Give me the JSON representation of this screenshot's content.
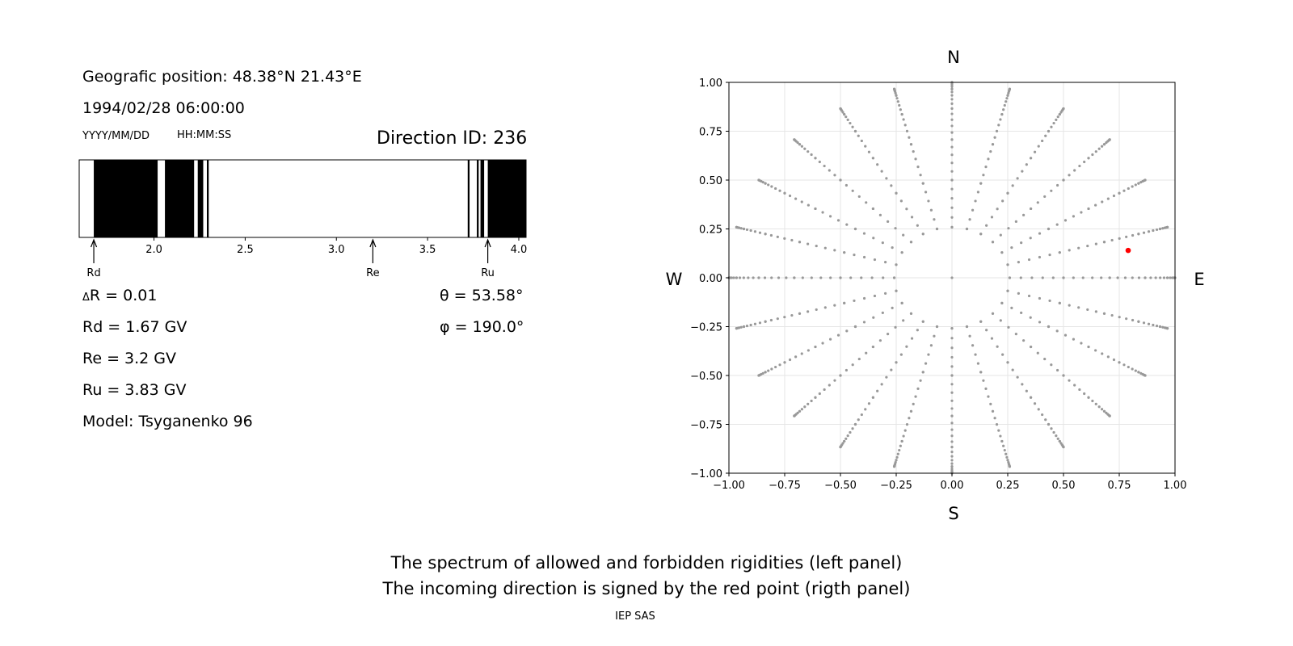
{
  "left_panel": {
    "position": "Geografic position: 48.38°N 21.43°E",
    "datetime": "1994/02/28 06:00:00",
    "date_format": "YYYY/MM/DD",
    "time_format": "HH:MM:SS",
    "direction_id": "Direction ID: 236",
    "delta_r": "R = 0.01",
    "rd": "Rd = 1.67 GV",
    "re": "Re = 3.2 GV",
    "ru": "Ru = 3.83 GV",
    "model": "Model: Tsyganenko 96",
    "theta": "θ = 53.58°",
    "phi": "φ = 190.0°"
  },
  "captions": {
    "line1": "The spectrum of allowed and forbidden rigidities (left panel)",
    "line2": "The incoming direction is signed by the red point (rigth panel)",
    "credit": "IEP SAS"
  },
  "chart_data": [
    {
      "type": "bar",
      "description_ref": "rigidity spectrum",
      "xlim": [
        1.59,
        4.04
      ],
      "xticks": [
        "2.0",
        "2.5",
        "3.0",
        "3.5",
        "4.0"
      ],
      "xtick_values": [
        2.0,
        2.5,
        3.0,
        3.5,
        4.0
      ],
      "forbidden_bands": [
        [
          1.67,
          2.02
        ],
        [
          2.06,
          2.22
        ],
        [
          2.24,
          2.27
        ],
        [
          2.29,
          2.3
        ],
        [
          3.72,
          3.73
        ],
        [
          3.77,
          3.78
        ],
        [
          3.79,
          3.81
        ],
        [
          3.83,
          4.04
        ]
      ],
      "markers": [
        {
          "label": "Rd",
          "value": 1.67
        },
        {
          "label": "Re",
          "value": 3.2
        },
        {
          "label": "Ru",
          "value": 3.83
        }
      ],
      "colors": {
        "forbidden": "#000000",
        "allowed": "#ffffff"
      }
    },
    {
      "type": "scatter",
      "xlim": [
        -1.0,
        1.0
      ],
      "ylim": [
        -1.0,
        1.0
      ],
      "xticks": [
        "−1.00",
        "−0.75",
        "−0.50",
        "−0.25",
        "0.00",
        "0.25",
        "0.50",
        "0.75",
        "1.00"
      ],
      "yticks": [
        "1.00",
        "0.75",
        "0.50",
        "0.25",
        "0.00",
        "−0.25",
        "−0.50",
        "−0.75",
        "−1.00"
      ],
      "tick_values": [
        -1.0,
        -0.75,
        -0.5,
        -0.25,
        0.0,
        0.25,
        0.5,
        0.75,
        1.0
      ],
      "grid": true,
      "compass": {
        "top": "N",
        "bottom": "S",
        "left": "W",
        "right": "E"
      },
      "grid_directions": {
        "zenith_rings_deg": [
          15,
          30,
          45,
          60,
          75,
          90
        ],
        "ring_point_step_deg": 15,
        "spoke_azimuth_step_deg": 15,
        "spoke_zenith_range_deg": [
          15,
          90
        ],
        "spoke_zenith_step_deg": 3,
        "color": "#999999"
      },
      "selected_direction": {
        "x": 0.79,
        "y": 0.14,
        "color": "#ff0000"
      }
    }
  ]
}
